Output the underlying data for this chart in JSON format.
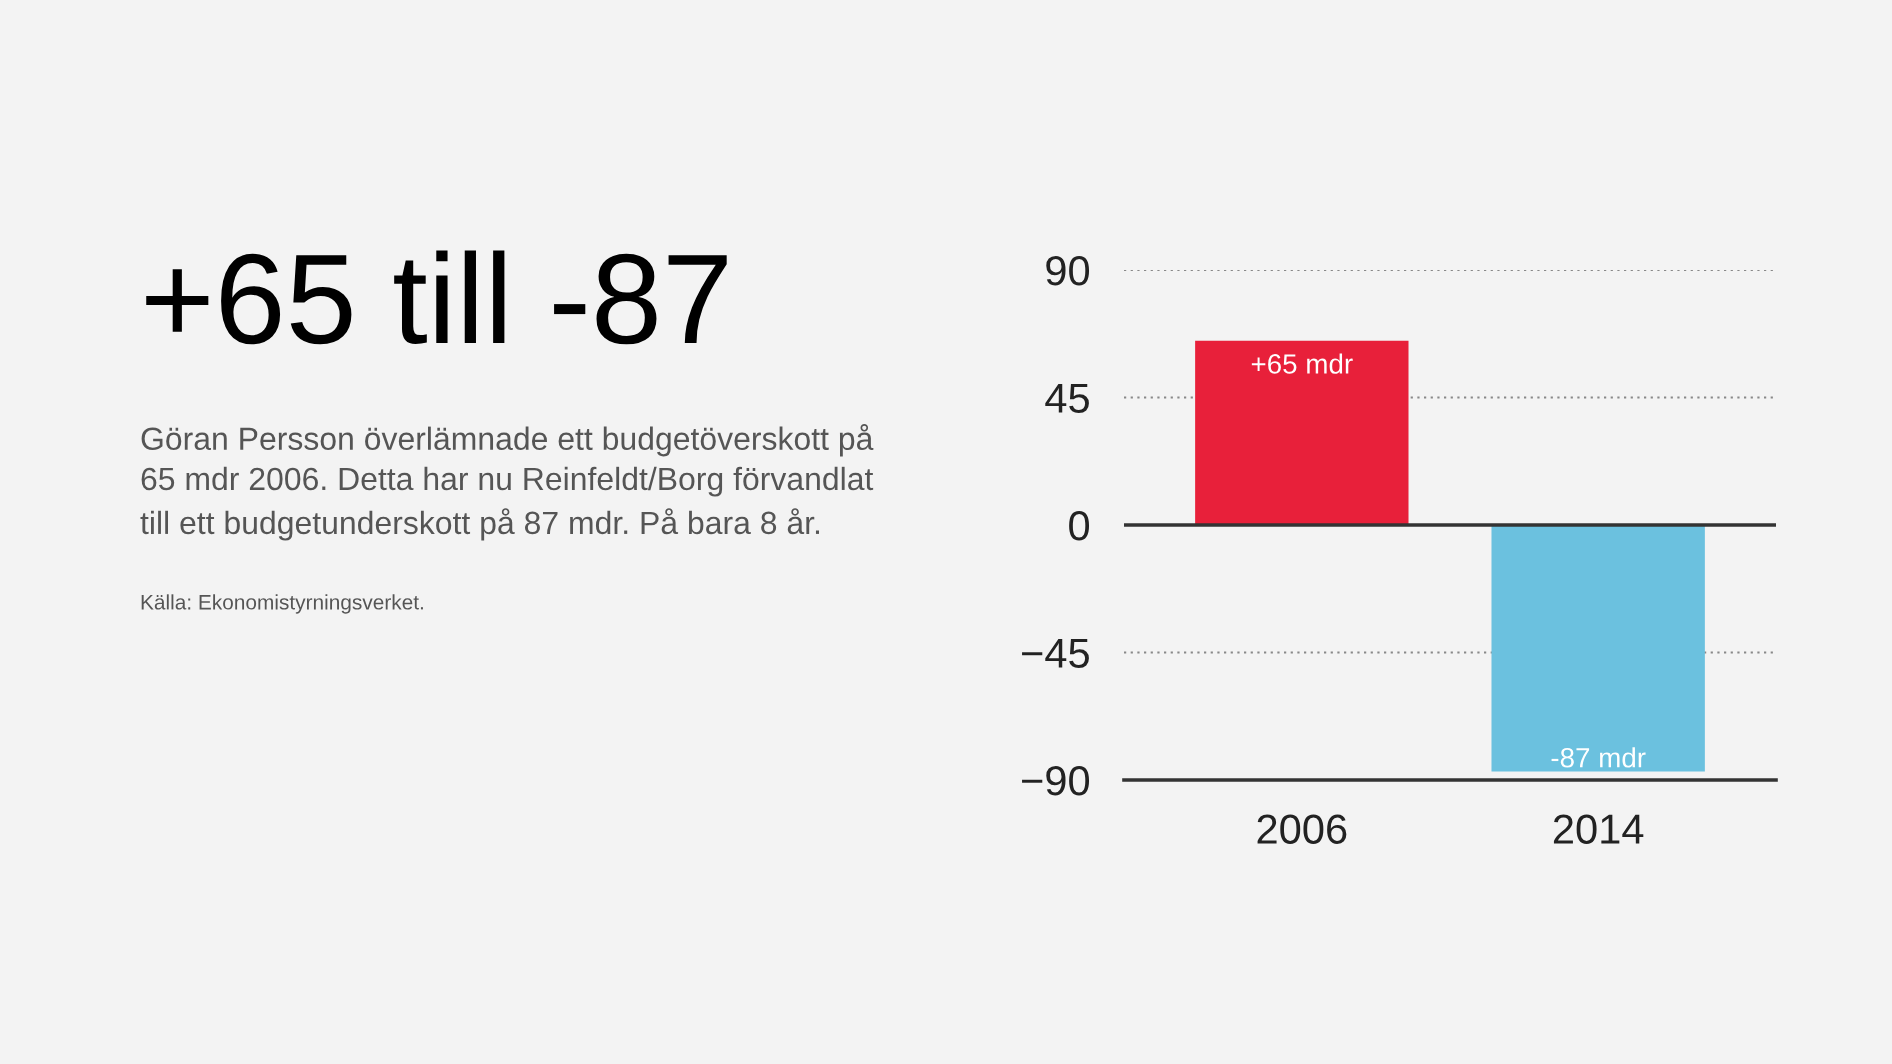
{
  "chart_data": {
    "type": "bar",
    "title": "+65 till -87",
    "subtitle": "Göran Persson överlämnade ett budgetöverskott på\n65 mdr 2006. Detta har nu Reinfeldt/Borg förvandlat\ntill ett budgetunderskott på 87 mdr. På bara 8 år.",
    "annotations": [
      "Källa: Ekonomistyrningsverket."
    ],
    "categories": [
      "2006",
      "2014"
    ],
    "values": [
      65,
      -87
    ],
    "colors": [
      "#e8203a",
      "#6bc1df"
    ],
    "value_labels": [
      "+65 mdr",
      "-87 mdr"
    ],
    "ylim": [
      -90,
      90
    ],
    "yticks": [
      {
        "value": -90,
        "label": "−90"
      },
      {
        "value": -45,
        "label": "−45"
      },
      0,
      45,
      90
    ],
    "ref_lines": [
      {
        "axis": "y",
        "value": 0,
        "color": "#333333",
        "line_style": "solid"
      }
    ],
    "grid": "y"
  }
}
